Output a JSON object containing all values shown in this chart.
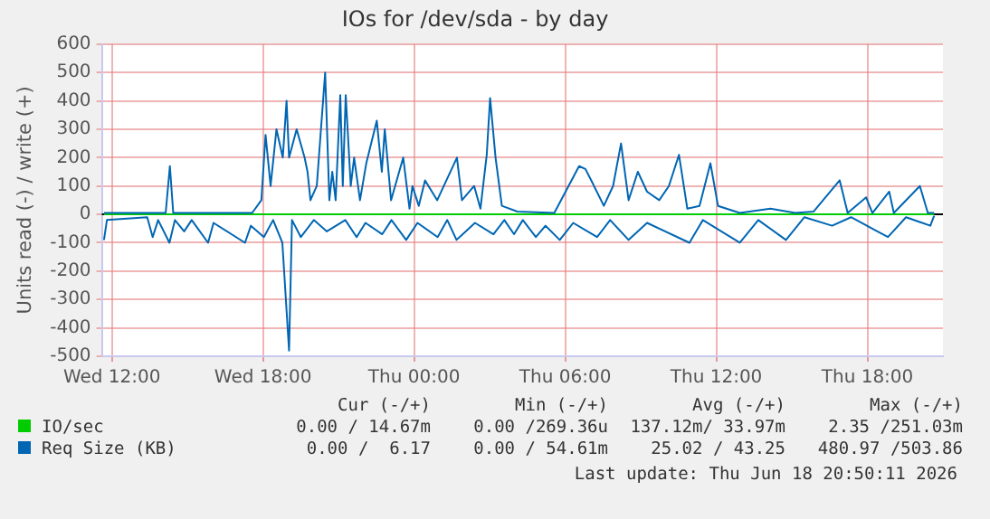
{
  "chart_data": {
    "type": "line",
    "title": "IOs for /dev/sda - by day",
    "ylabel": "Units read (-) / write (+)",
    "xlim": [
      "2026-06-17T11:36",
      "2026-06-18T21:00"
    ],
    "xticks": [
      {
        "value": "2026-06-17T12:00",
        "label": "Wed 12:00"
      },
      {
        "value": "2026-06-17T18:00",
        "label": "Wed 18:00"
      },
      {
        "value": "2026-06-18T00:00",
        "label": "Thu 00:00"
      },
      {
        "value": "2026-06-18T06:00",
        "label": "Thu 06:00"
      },
      {
        "value": "2026-06-18T12:00",
        "label": "Thu 12:00"
      },
      {
        "value": "2026-06-18T18:00",
        "label": "Thu 18:00"
      }
    ],
    "ylim": [
      -500,
      600
    ],
    "yticks": [
      -500,
      -400,
      -300,
      -200,
      -100,
      0,
      100,
      200,
      300,
      400,
      500,
      600
    ],
    "grid": true,
    "legend": "bottom",
    "marker": "none",
    "line_style": "solid",
    "series": [
      {
        "name": "Req Size (KB)",
        "color": "#0066b3",
        "x": [
          "2026-06-17T11:41",
          "2026-06-17T14:08",
          "2026-06-17T14:18",
          "2026-06-17T14:26",
          "2026-06-17T17:34",
          "2026-06-17T17:56",
          "2026-06-17T18:06",
          "2026-06-17T18:18",
          "2026-06-17T18:32",
          "2026-06-17T18:47",
          "2026-06-17T18:56",
          "2026-06-17T19:02",
          "2026-06-17T19:20",
          "2026-06-17T19:39",
          "2026-06-17T19:46",
          "2026-06-17T19:53",
          "2026-06-17T20:08",
          "2026-06-17T20:28",
          "2026-06-17T20:38",
          "2026-06-17T20:45",
          "2026-06-17T20:53",
          "2026-06-17T21:04",
          "2026-06-17T21:10",
          "2026-06-17T21:17",
          "2026-06-17T21:29",
          "2026-06-17T21:37",
          "2026-06-17T21:51",
          "2026-06-17T22:06",
          "2026-06-17T22:31",
          "2026-06-17T22:43",
          "2026-06-17T22:50",
          "2026-06-17T23:05",
          "2026-06-17T23:34",
          "2026-06-17T23:49",
          "2026-06-17T23:56",
          "2026-06-18T00:11",
          "2026-06-18T00:26",
          "2026-06-18T00:55",
          "2026-06-18T01:42",
          "2026-06-18T01:54",
          "2026-06-18T02:23",
          "2026-06-18T02:38",
          "2026-06-18T02:53",
          "2026-06-18T03:01",
          "2026-06-18T03:14",
          "2026-06-18T03:29",
          "2026-06-18T04:06",
          "2026-06-18T05:34",
          "2026-06-18T06:33",
          "2026-06-18T06:48",
          "2026-06-18T07:02",
          "2026-06-18T07:32",
          "2026-06-18T07:54",
          "2026-06-18T08:13",
          "2026-06-18T08:31",
          "2026-06-18T08:53",
          "2026-06-18T09:15",
          "2026-06-18T09:44",
          "2026-06-18T10:07",
          "2026-06-18T10:31",
          "2026-06-18T10:51",
          "2026-06-18T11:20",
          "2026-06-18T11:46",
          "2026-06-18T12:04",
          "2026-06-18T12:56",
          "2026-06-18T14:09",
          "2026-06-18T15:08",
          "2026-06-18T15:52",
          "2026-06-18T16:54",
          "2026-06-18T17:13",
          "2026-06-18T17:57",
          "2026-06-18T18:12",
          "2026-06-18T18:52",
          "2026-06-18T19:03",
          "2026-06-18T20:05",
          "2026-06-18T20:24",
          "2026-06-18T20:39"
        ],
        "values": [
          5,
          5,
          170,
          5,
          5,
          50,
          280,
          100,
          300,
          200,
          400,
          200,
          300,
          200,
          150,
          50,
          100,
          500,
          50,
          150,
          50,
          420,
          100,
          420,
          100,
          200,
          50,
          180,
          330,
          150,
          300,
          50,
          200,
          20,
          100,
          30,
          120,
          50,
          200,
          50,
          100,
          20,
          210,
          410,
          200,
          30,
          10,
          5,
          170,
          160,
          120,
          30,
          100,
          250,
          50,
          150,
          80,
          50,
          100,
          210,
          20,
          30,
          180,
          30,
          5,
          20,
          5,
          10,
          120,
          5,
          60,
          5,
          80,
          5,
          100,
          5,
          5
        ]
      },
      {
        "color": "#0066b3",
        "x": [
          "2026-06-17T11:41",
          "2026-06-17T11:48",
          "2026-06-17T13:24",
          "2026-06-17T13:37",
          "2026-06-17T13:50",
          "2026-06-17T14:17",
          "2026-06-17T14:30",
          "2026-06-17T14:52",
          "2026-06-17T15:10",
          "2026-06-17T15:49",
          "2026-06-17T16:02",
          "2026-06-17T17:17",
          "2026-06-17T17:31",
          "2026-06-17T18:02",
          "2026-06-17T18:24",
          "2026-06-17T18:46",
          "2026-06-17T19:02",
          "2026-06-17T19:09",
          "2026-06-17T19:30",
          "2026-06-17T20:01",
          "2026-06-17T20:32",
          "2026-06-17T21:16",
          "2026-06-17T21:43",
          "2026-06-17T22:04",
          "2026-06-17T22:44",
          "2026-06-17T23:06",
          "2026-06-17T23:41",
          "2026-06-18T00:08",
          "2026-06-18T00:56",
          "2026-06-18T01:19",
          "2026-06-18T01:41",
          "2026-06-18T02:25",
          "2026-06-18T03:09",
          "2026-06-18T03:35",
          "2026-06-18T03:58",
          "2026-06-18T04:19",
          "2026-06-18T04:50",
          "2026-06-18T05:13",
          "2026-06-18T05:47",
          "2026-06-18T06:19",
          "2026-06-18T07:16",
          "2026-06-18T07:47",
          "2026-06-18T08:31",
          "2026-06-18T09:15",
          "2026-06-18T10:56",
          "2026-06-18T11:28",
          "2026-06-18T12:56",
          "2026-06-18T13:40",
          "2026-06-18T14:46",
          "2026-06-18T15:30",
          "2026-06-18T16:36",
          "2026-06-18T17:21",
          "2026-06-18T18:49",
          "2026-06-18T19:32",
          "2026-06-18T20:30",
          "2026-06-18T20:39"
        ],
        "values": [
          -90,
          -20,
          -10,
          -80,
          -20,
          -100,
          -20,
          -60,
          -20,
          -100,
          -30,
          -100,
          -40,
          -80,
          -20,
          -100,
          -480,
          -20,
          -80,
          -20,
          -60,
          -20,
          -80,
          -30,
          -70,
          -20,
          -90,
          -30,
          -80,
          -20,
          -90,
          -30,
          -70,
          -20,
          -70,
          -20,
          -80,
          -40,
          -90,
          -30,
          -80,
          -20,
          -90,
          -30,
          -100,
          -20,
          -100,
          -20,
          -90,
          -10,
          -40,
          -10,
          -80,
          -10,
          -40,
          -5
        ]
      },
      {
        "name": "IO/sec",
        "color": "#00cc00",
        "x": [
          "2026-06-17T11:41",
          "2026-06-18T20:39"
        ],
        "values": [
          0,
          0
        ]
      }
    ],
    "ref_lines": [
      {
        "axis": "y",
        "value": 0,
        "color": "#000000"
      }
    ],
    "annotations": [
      "Cur (-/+)",
      "Min (-/+)",
      "Avg (-/+)",
      "Max (-/+)",
      "0.00 / 14.67m",
      "0.00 /269.36u",
      "137.12m/ 33.97m",
      "2.35 /251.03m",
      "0.00 /  6.17",
      "0.00 / 54.61m",
      "25.02 / 43.25",
      "480.97 /503.86",
      "Last update: Thu Jun 18 20:50:11 2026"
    ]
  }
}
